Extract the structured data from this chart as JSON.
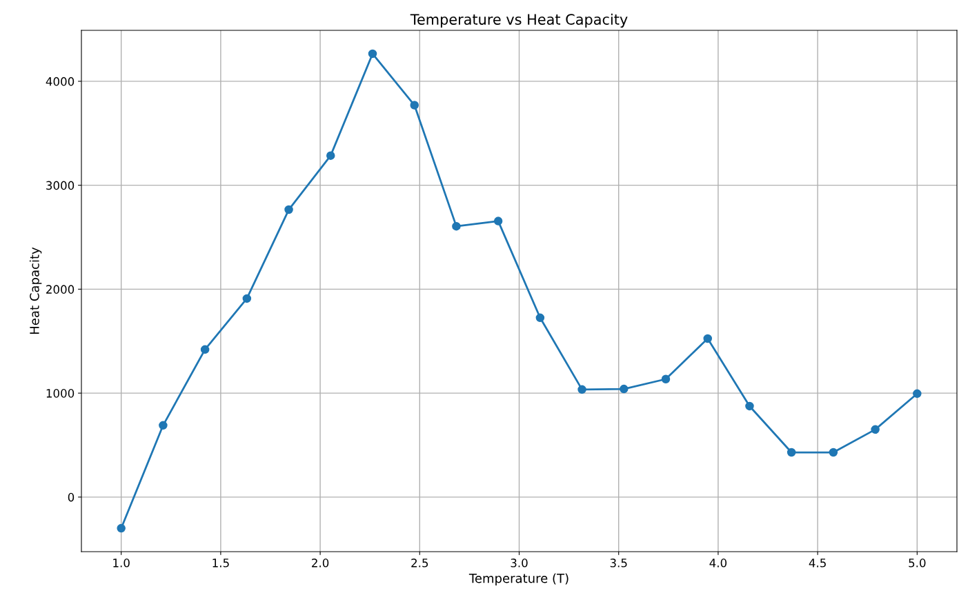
{
  "chart_data": {
    "type": "line",
    "title": "Temperature vs Heat Capacity",
    "xlabel": "Temperature (T)",
    "ylabel": "Heat Capacity",
    "x": [
      1.0,
      1.2105,
      1.4211,
      1.6316,
      1.8421,
      2.0526,
      2.2632,
      2.4737,
      2.6842,
      2.8947,
      3.1053,
      3.3158,
      3.5263,
      3.7368,
      3.9474,
      4.1579,
      4.3684,
      4.5789,
      4.7895,
      5.0
    ],
    "series": [
      {
        "color": "#1f77b4",
        "values": [
          -300,
          690,
          1420,
          1910,
          2765,
          3285,
          4265,
          3770,
          2605,
          2655,
          1725,
          1035,
          1040,
          1135,
          1525,
          875,
          430,
          430,
          650,
          995
        ]
      }
    ],
    "xlim": [
      0.8,
      5.2
    ],
    "xticks": [
      {
        "value": 1.0,
        "label": "1.0"
      },
      {
        "value": 1.5,
        "label": "1.5"
      },
      {
        "value": 2.0,
        "label": "2.0"
      },
      {
        "value": 2.5,
        "label": "2.5"
      },
      {
        "value": 3.0,
        "label": "3.0"
      },
      {
        "value": 3.5,
        "label": "3.5"
      },
      {
        "value": 4.0,
        "label": "4.0"
      },
      {
        "value": 4.5,
        "label": "4.5"
      },
      {
        "value": 5.0,
        "label": "5.0"
      }
    ],
    "ylim": [
      -525,
      4490
    ],
    "yticks": [
      0,
      1000,
      2000,
      3000,
      4000
    ],
    "grid": true,
    "marker": "circle",
    "line_style": "solid"
  }
}
